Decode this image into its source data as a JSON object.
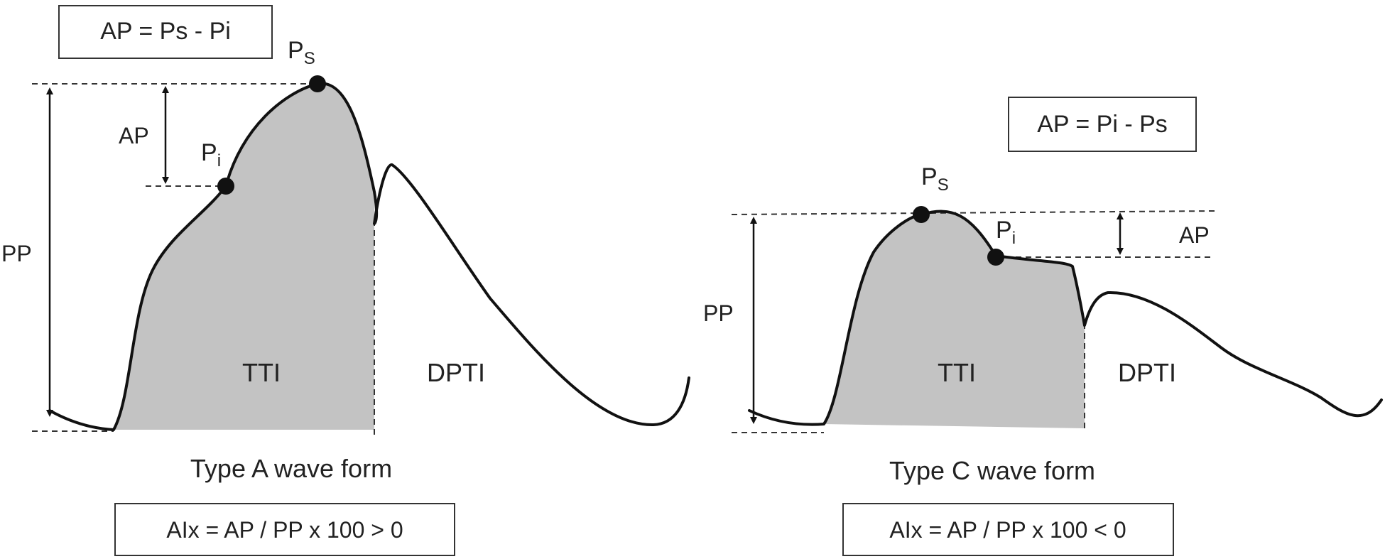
{
  "panel_a": {
    "formula_box": "AP = Ps - Pi",
    "ps_label": "P",
    "ps_sub": "S",
    "pi_label": "P",
    "pi_sub": "i",
    "ap_label": "AP",
    "pp_label": "PP",
    "tti_label": "TTI",
    "dpti_label": "DPTI",
    "caption": "Type  A wave form",
    "aix_box": "AIx  = AP  /  PP  x  100 > 0"
  },
  "panel_c": {
    "formula_box": "AP = Pi - Ps",
    "ps_label": "P",
    "ps_sub": "S",
    "pi_label": "P",
    "pi_sub": "i",
    "ap_label": "AP",
    "pp_label": "PP",
    "tti_label": "TTI",
    "dpti_label": "DPTI",
    "caption": "Type C wave form",
    "aix_box": "AIx  = AP  /  PP  x  100 < 0"
  },
  "colors": {
    "fill": "#c3c3c3",
    "line": "#111111"
  }
}
